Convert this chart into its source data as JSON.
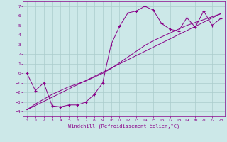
{
  "background_color": "#cce8e8",
  "grid_color": "#aacccc",
  "line_color": "#880088",
  "xlabel": "Windchill (Refroidissement éolien,°C)",
  "xlim": [
    -0.5,
    23.5
  ],
  "ylim": [
    -4.5,
    7.5
  ],
  "xticks": [
    0,
    1,
    2,
    3,
    4,
    5,
    6,
    7,
    8,
    9,
    10,
    11,
    12,
    13,
    14,
    15,
    16,
    17,
    18,
    19,
    20,
    21,
    22,
    23
  ],
  "yticks": [
    -4,
    -3,
    -2,
    -1,
    0,
    1,
    2,
    3,
    4,
    5,
    6,
    7
  ],
  "curve1_x": [
    0,
    1,
    2,
    3,
    4,
    5,
    6,
    7,
    8,
    9,
    10,
    11,
    12,
    13,
    14,
    15,
    16,
    17,
    18,
    19,
    20,
    21,
    22,
    23
  ],
  "curve1_y": [
    0,
    -1.8,
    -1.0,
    -3.4,
    -3.5,
    -3.3,
    -3.3,
    -3.0,
    -2.2,
    -1.0,
    3.0,
    4.9,
    6.3,
    6.5,
    7.0,
    6.6,
    5.2,
    4.6,
    4.4,
    5.8,
    4.8,
    6.5,
    5.0,
    5.7
  ],
  "curve2_x": [
    0,
    1,
    2,
    3,
    4,
    5,
    6,
    7,
    8,
    9,
    10,
    11,
    12,
    13,
    14,
    15,
    16,
    17,
    18,
    19,
    20,
    21,
    22,
    23
  ],
  "curve2_y": [
    -3.8,
    -3.2,
    -2.7,
    -2.2,
    -1.8,
    -1.4,
    -1.1,
    -0.8,
    -0.4,
    0.0,
    0.5,
    1.1,
    1.7,
    2.3,
    2.9,
    3.4,
    3.8,
    4.2,
    4.6,
    5.0,
    5.3,
    5.6,
    5.9,
    6.2
  ],
  "curve3_x": [
    0,
    23
  ],
  "curve3_y": [
    -3.8,
    6.2
  ]
}
